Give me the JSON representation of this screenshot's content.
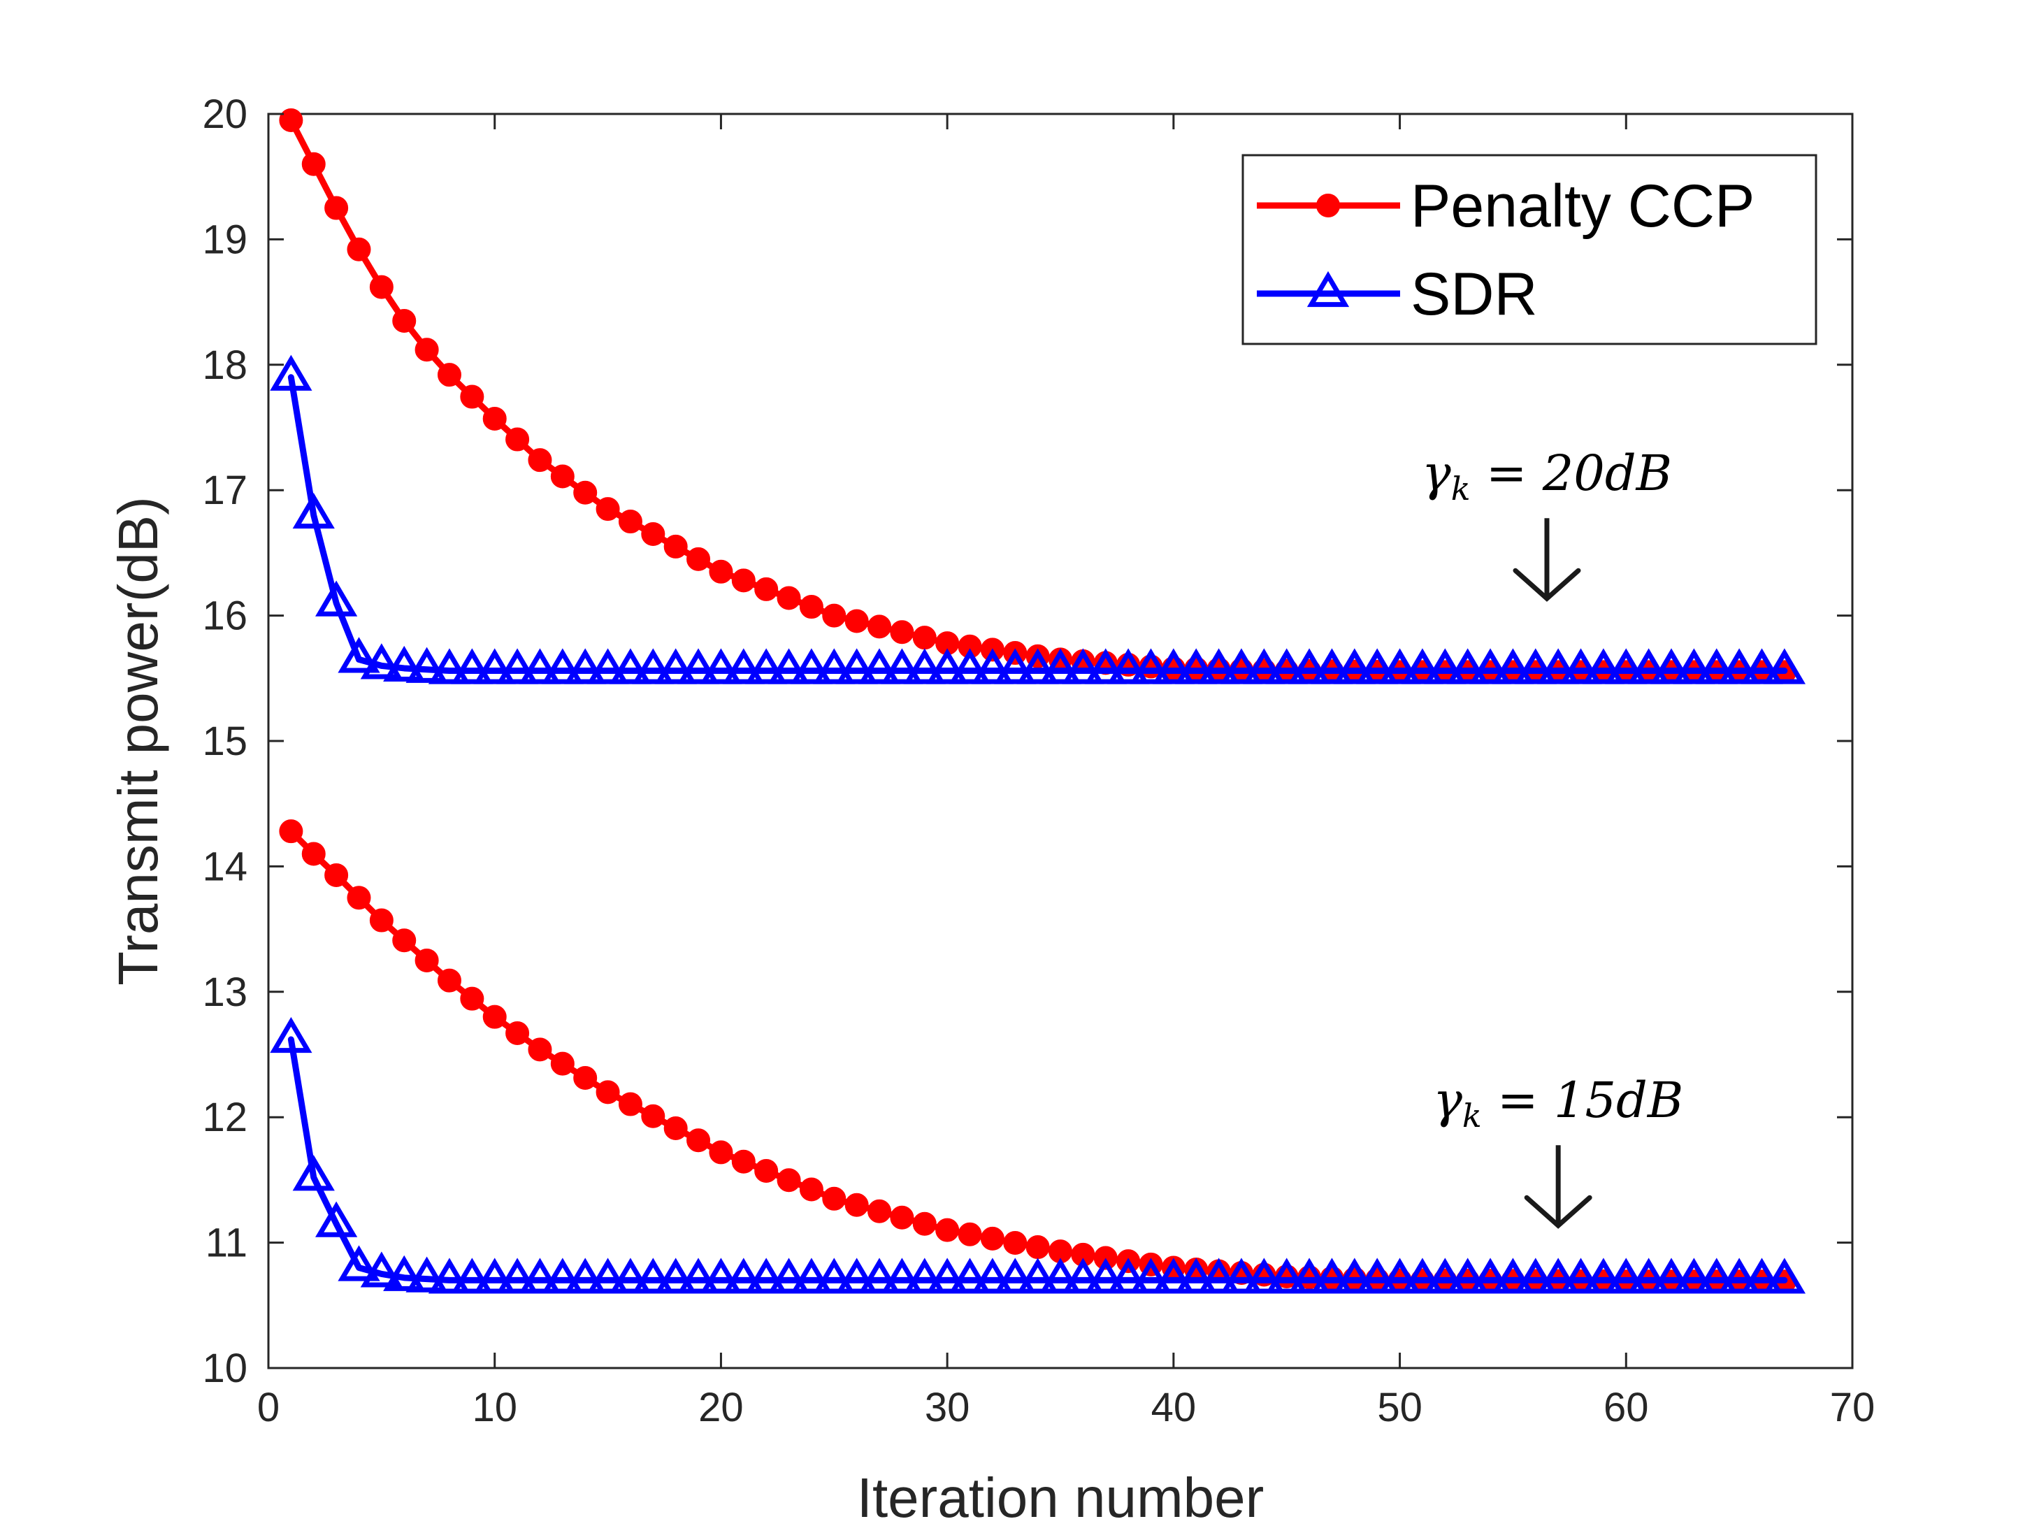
{
  "chart_data": {
    "type": "line",
    "xlabel": "Iteration number",
    "ylabel": "Transmit power(dB)",
    "xlim": [
      0,
      70
    ],
    "ylim": [
      10,
      20
    ],
    "xticks": [
      "0",
      "10",
      "20",
      "30",
      "40",
      "50",
      "60",
      "70"
    ],
    "yticks": [
      "10",
      "11",
      "12",
      "13",
      "14",
      "15",
      "16",
      "17",
      "18",
      "19",
      "20"
    ],
    "grid": false,
    "legend_position": "top-right",
    "legend": [
      "Penalty CCP",
      "SDR"
    ],
    "colors": {
      "penalty": "#ff0000",
      "sdr": "#0000ff"
    },
    "annotations": [
      {
        "label": "γ",
        "sub": "k",
        "rest": " = 20dB",
        "x": 56.5,
        "y": 17.0,
        "arrow": "down"
      },
      {
        "label": "γ",
        "sub": "k",
        "rest": " = 15dB",
        "x": 57.0,
        "y": 12.0,
        "arrow": "down"
      }
    ],
    "series": [
      {
        "name": "Penalty CCP",
        "group": "γk = 20dB",
        "marker": "circle",
        "x_start": 1,
        "x_end": 67,
        "y_sampled": {
          "1": 19.95,
          "2": 19.6,
          "3": 19.25,
          "4": 18.92,
          "5": 18.62,
          "6": 18.35,
          "7": 18.12,
          "8": 17.92,
          "10": 17.57,
          "12": 17.24,
          "15": 16.85,
          "20": 16.35,
          "25": 16.0,
          "30": 15.78,
          "35": 15.65,
          "40": 15.58,
          "45": 15.56,
          "50": 15.55,
          "60": 15.55,
          "67": 15.55
        }
      },
      {
        "name": "SDR",
        "group": "γk = 20dB",
        "marker": "triangle",
        "x_start": 1,
        "x_end": 67,
        "y_sampled": {
          "1": 17.9,
          "2": 16.8,
          "3": 16.1,
          "4": 15.65,
          "5": 15.6,
          "6": 15.58,
          "8": 15.56,
          "10": 15.56,
          "67": 15.56
        }
      },
      {
        "name": "Penalty CCP",
        "group": "γk = 15dB",
        "marker": "circle",
        "x_start": 1,
        "x_end": 67,
        "y_sampled": {
          "1": 14.28,
          "2": 14.1,
          "3": 13.93,
          "4": 13.75,
          "5": 13.57,
          "6": 13.41,
          "7": 13.25,
          "8": 13.09,
          "10": 12.8,
          "12": 12.54,
          "15": 12.2,
          "20": 11.72,
          "25": 11.35,
          "30": 11.1,
          "35": 10.93,
          "40": 10.8,
          "45": 10.73,
          "50": 10.7,
          "60": 10.69,
          "67": 10.69
        }
      },
      {
        "name": "SDR",
        "group": "γk = 15dB",
        "marker": "triangle",
        "x_start": 1,
        "x_end": 67,
        "y_sampled": {
          "1": 12.62,
          "2": 11.52,
          "3": 11.15,
          "4": 10.8,
          "5": 10.75,
          "6": 10.72,
          "8": 10.7,
          "10": 10.7,
          "67": 10.7
        }
      }
    ]
  }
}
